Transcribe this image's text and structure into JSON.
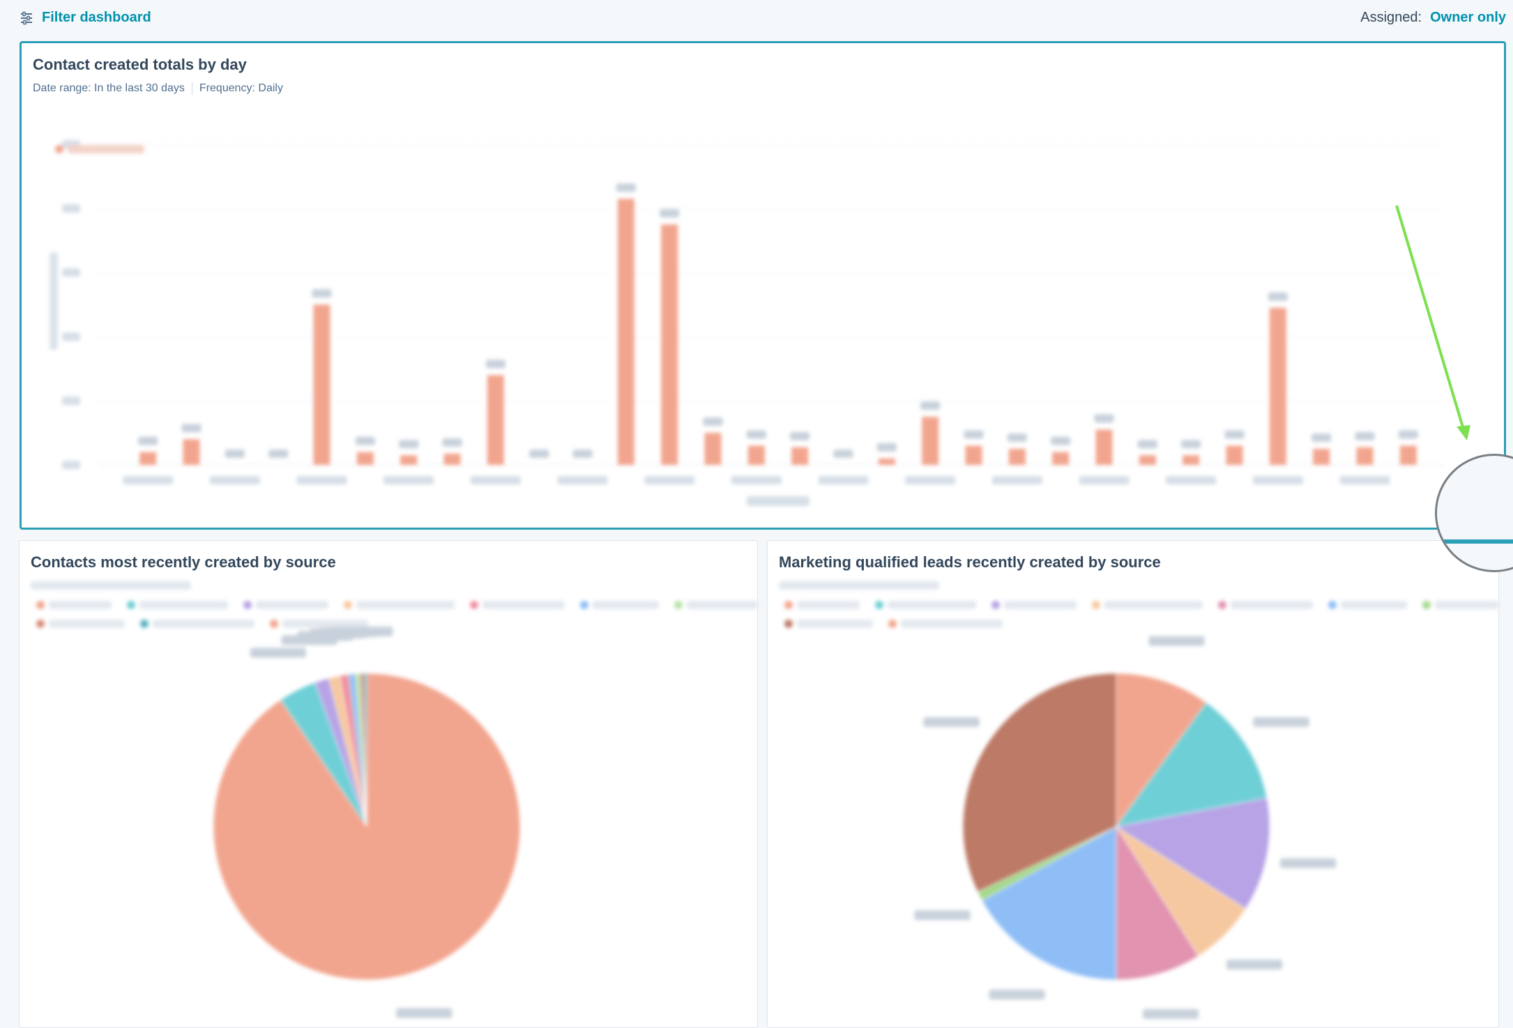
{
  "header": {
    "filter_label": "Filter dashboard",
    "assigned_label": "Assigned:",
    "assigned_value": "Owner only"
  },
  "card1": {
    "title": "Contact created totals by day",
    "date_range": "Date range:  In the last 30 days",
    "frequency": "Frequency:  Daily"
  },
  "card2": {
    "title": "Contacts most recently created by source"
  },
  "card3": {
    "title": "Marketing qualified leads recently created by source"
  },
  "colors": {
    "accent": "#0091ae",
    "bar": "#f2a58e",
    "selected_border": "#2a9fb5",
    "annotation_arrow": "#7de050"
  },
  "chart_data": [
    {
      "type": "bar",
      "ylim": [
        0,
        1000
      ],
      "values": [
        40,
        80,
        0,
        0,
        500,
        40,
        30,
        35,
        280,
        0,
        0,
        830,
        750,
        100,
        60,
        55,
        0,
        20,
        150,
        60,
        50,
        40,
        110,
        30,
        30,
        60,
        490,
        50,
        55,
        60
      ],
      "grid": true
    },
    {
      "type": "pie",
      "values": [
        90.5,
        4.0,
        1.5,
        1.2,
        0.9,
        0.7,
        0.5,
        0.4,
        0.3
      ],
      "colors": [
        "#f2a58e",
        "#6fcfd6",
        "#b7a3e6",
        "#f6c89f",
        "#f08fa0",
        "#8fbef6",
        "#b6e3a8",
        "#d98b7a",
        "#5ab3c7"
      ]
    },
    {
      "type": "pie",
      "values": [
        10,
        12,
        12,
        7,
        9,
        17,
        1,
        32
      ],
      "colors": [
        "#f2a58e",
        "#6fcfd6",
        "#b7a3e6",
        "#f6c89f",
        "#e193b0",
        "#8fbef6",
        "#a3d98a",
        "#bd7a66"
      ]
    }
  ]
}
